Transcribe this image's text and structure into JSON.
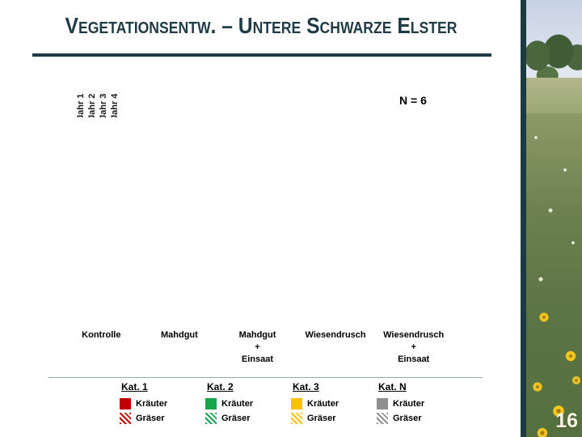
{
  "slide": {
    "title": "Vegetationsentw. – Untere Schwarze Elster",
    "page_number": "16",
    "accent_color": "#1F3B45"
  },
  "chart_data": {
    "type": "bar",
    "title": "Vegetationsentw. – Untere Schwarze Elster",
    "annotation": "N = 6",
    "series": [
      {
        "name": "Jahr 1"
      },
      {
        "name": "Jahr 2"
      },
      {
        "name": "Jahr 3"
      },
      {
        "name": "Jahr 4"
      }
    ],
    "categories": [
      "Kontrolle",
      "Mahdgut",
      "Mahdgut\n+\nEinsaat",
      "Wiesendrusch",
      "Wiesendrusch\n+\nEinsaat"
    ],
    "values_visible": false,
    "note": "Plot area is blank on this slide — no bar values are displayed",
    "legend_position": "bottom",
    "legend": [
      {
        "group": "Kat. 1",
        "color": "#C00000",
        "entries": [
          {
            "label": "Kräuter",
            "fill": "solid"
          },
          {
            "label": "Gräser",
            "fill": "hatched"
          }
        ]
      },
      {
        "group": "Kat. 2",
        "color": "#17A54C",
        "entries": [
          {
            "label": "Kräuter",
            "fill": "solid"
          },
          {
            "label": "Gräser",
            "fill": "hatched"
          }
        ]
      },
      {
        "group": "Kat. 3",
        "color": "#FFC000",
        "entries": [
          {
            "label": "Kräuter",
            "fill": "solid"
          },
          {
            "label": "Gräser",
            "fill": "hatched"
          }
        ]
      },
      {
        "group": "Kat. N",
        "color": "#8F8F8F",
        "entries": [
          {
            "label": "Kräuter",
            "fill": "solid"
          },
          {
            "label": "Gräser",
            "fill": "hatched"
          }
        ]
      }
    ]
  }
}
